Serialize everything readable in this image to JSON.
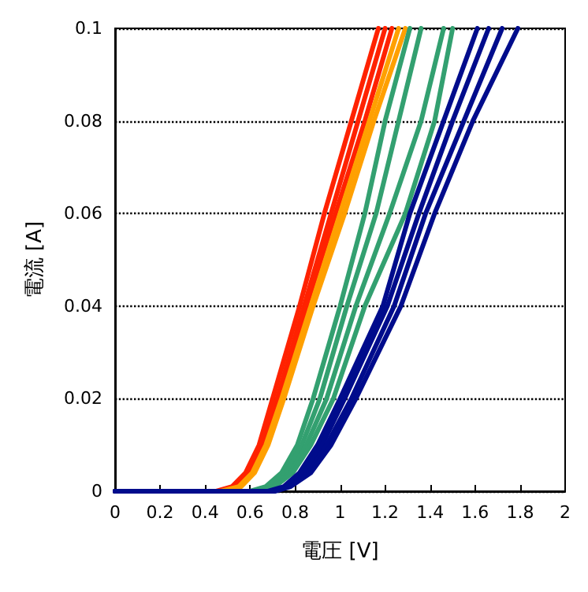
{
  "chart_data": {
    "type": "line",
    "xlabel": "電圧 [V]",
    "ylabel": "電流 [A]",
    "xlim": [
      0,
      2
    ],
    "xticks": [
      0,
      0.2,
      0.4,
      0.6,
      0.8,
      1,
      1.2,
      1.4,
      1.6,
      1.8,
      2
    ],
    "ylim": [
      0,
      0.1
    ],
    "yticks": [
      0,
      0.02,
      0.04,
      0.06,
      0.08,
      0.1
    ],
    "grid": "y",
    "marker": "none",
    "line_style": "solid",
    "series": [
      {
        "color": "#ff2200",
        "x": [
          0,
          0.45,
          0.52,
          0.58,
          0.64,
          0.7,
          0.82,
          0.93,
          1.05,
          1.17
        ],
        "values": [
          0,
          0,
          0.001,
          0.004,
          0.01,
          0.02,
          0.04,
          0.06,
          0.08,
          0.1
        ]
      },
      {
        "color": "#ff2200",
        "x": [
          0,
          0.46,
          0.53,
          0.59,
          0.65,
          0.72,
          0.84,
          0.96,
          1.08,
          1.2
        ],
        "values": [
          0,
          0,
          0.001,
          0.004,
          0.01,
          0.02,
          0.04,
          0.06,
          0.08,
          0.1
        ]
      },
      {
        "color": "#ff2200",
        "x": [
          0,
          0.47,
          0.54,
          0.6,
          0.66,
          0.73,
          0.85,
          0.98,
          1.11,
          1.23
        ],
        "values": [
          0,
          0,
          0.001,
          0.004,
          0.01,
          0.02,
          0.04,
          0.06,
          0.08,
          0.1
        ]
      },
      {
        "color": "#ffa000",
        "x": [
          0,
          0.47,
          0.55,
          0.61,
          0.67,
          0.74,
          0.87,
          1.0,
          1.13,
          1.26
        ],
        "values": [
          0,
          0,
          0.001,
          0.004,
          0.01,
          0.02,
          0.04,
          0.06,
          0.08,
          0.1
        ]
      },
      {
        "color": "#ffa000",
        "x": [
          0,
          0.48,
          0.56,
          0.62,
          0.68,
          0.75,
          0.88,
          1.02,
          1.15,
          1.29
        ],
        "values": [
          0,
          0,
          0.001,
          0.004,
          0.01,
          0.02,
          0.04,
          0.06,
          0.08,
          0.1
        ]
      },
      {
        "color": "#33a070",
        "x": [
          0,
          0.6,
          0.67,
          0.74,
          0.81,
          0.88,
          1.0,
          1.11,
          1.2,
          1.31
        ],
        "values": [
          0,
          0,
          0.001,
          0.004,
          0.01,
          0.02,
          0.04,
          0.06,
          0.08,
          0.1
        ]
      },
      {
        "color": "#33a070",
        "x": [
          0,
          0.61,
          0.68,
          0.76,
          0.83,
          0.91,
          1.03,
          1.16,
          1.26,
          1.36
        ],
        "values": [
          0,
          0,
          0.001,
          0.004,
          0.01,
          0.02,
          0.04,
          0.06,
          0.08,
          0.1
        ]
      },
      {
        "color": "#33a070",
        "x": [
          0,
          0.62,
          0.7,
          0.78,
          0.85,
          0.94,
          1.07,
          1.22,
          1.36,
          1.46
        ],
        "values": [
          0,
          0,
          0.001,
          0.004,
          0.01,
          0.02,
          0.04,
          0.06,
          0.08,
          0.1
        ]
      },
      {
        "color": "#33a070",
        "x": [
          0,
          0.63,
          0.71,
          0.79,
          0.87,
          0.97,
          1.11,
          1.29,
          1.42,
          1.5
        ],
        "values": [
          0,
          0,
          0.001,
          0.004,
          0.01,
          0.02,
          0.04,
          0.06,
          0.08,
          0.1
        ]
      },
      {
        "color": "#000c8c",
        "x": [
          0,
          0.68,
          0.75,
          0.82,
          0.9,
          1.0,
          1.19,
          1.31,
          1.46,
          1.61
        ],
        "values": [
          0,
          0,
          0.001,
          0.004,
          0.01,
          0.02,
          0.04,
          0.06,
          0.08,
          0.1
        ]
      },
      {
        "color": "#000c8c",
        "x": [
          0,
          0.69,
          0.76,
          0.84,
          0.92,
          1.02,
          1.21,
          1.35,
          1.5,
          1.66
        ],
        "values": [
          0,
          0,
          0.001,
          0.004,
          0.01,
          0.02,
          0.04,
          0.06,
          0.08,
          0.1
        ]
      },
      {
        "color": "#000c8c",
        "x": [
          0,
          0.7,
          0.77,
          0.86,
          0.94,
          1.05,
          1.24,
          1.38,
          1.55,
          1.72
        ],
        "values": [
          0,
          0,
          0.001,
          0.004,
          0.01,
          0.02,
          0.04,
          0.06,
          0.08,
          0.1
        ]
      },
      {
        "color": "#000c8c",
        "x": [
          0,
          0.71,
          0.78,
          0.87,
          0.96,
          1.07,
          1.27,
          1.42,
          1.59,
          1.79
        ],
        "values": [
          0,
          0,
          0.001,
          0.004,
          0.01,
          0.02,
          0.04,
          0.06,
          0.08,
          0.1
        ]
      }
    ]
  }
}
